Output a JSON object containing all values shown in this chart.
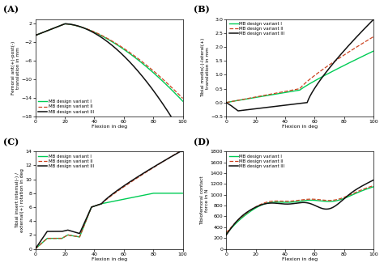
{
  "fig_width": 4.74,
  "fig_height": 3.3,
  "dpi": 100,
  "background_color": "#ffffff",
  "colors": {
    "variant_I": "#00cc55",
    "variant_II": "#cc4422",
    "variant_III": "#111111"
  },
  "legend_labels": [
    "MB design variant I",
    "MB design variant II",
    "MB design variant III"
  ],
  "panels": {
    "A": {
      "label": "(A)",
      "ylabel": "Femoral ant(+)-post(-)\ntranslation in mm",
      "xlabel": "Flexion in deg",
      "ylim": [
        -18,
        3
      ],
      "xlim": [
        0,
        100
      ],
      "yticks": [
        2,
        -2,
        -6,
        -10,
        -14,
        -18
      ],
      "xticks": [
        0,
        20,
        40,
        60,
        80,
        100
      ],
      "legend_loc": "lower left"
    },
    "B": {
      "label": "(B)",
      "ylabel": "Tibial medio(-)-lateral(+)\ntranslation in mm",
      "xlabel": "Flexion in deg",
      "ylim": [
        -0.5,
        3
      ],
      "xlim": [
        0,
        100
      ],
      "yticks": [
        -0.5,
        0,
        0.5,
        1,
        1.5,
        2,
        2.5,
        3
      ],
      "xticks": [
        0,
        20,
        40,
        60,
        80,
        100
      ],
      "legend_loc": "upper left"
    },
    "C": {
      "label": "(C)",
      "ylabel": "Tibial insert internal(-) /\nexternal(+) rotation in deg",
      "xlabel": "Flexion in deg",
      "ylim": [
        0,
        14
      ],
      "xlim": [
        0,
        100
      ],
      "yticks": [
        0,
        2,
        4,
        6,
        8,
        10,
        12,
        14
      ],
      "xticks": [
        0,
        20,
        40,
        60,
        80,
        100
      ],
      "legend_loc": "upper left"
    },
    "D": {
      "label": "(D)",
      "ylabel": "Tibiofemoral contact\nforce in N",
      "xlabel": "Flexion in deg",
      "ylim": [
        0,
        1800
      ],
      "xlim": [
        0,
        100
      ],
      "yticks": [
        0,
        200,
        400,
        600,
        800,
        1000,
        1200,
        1400,
        1600,
        1800
      ],
      "xticks": [
        0,
        20,
        40,
        60,
        80,
        100
      ],
      "legend_loc": "upper left"
    }
  }
}
